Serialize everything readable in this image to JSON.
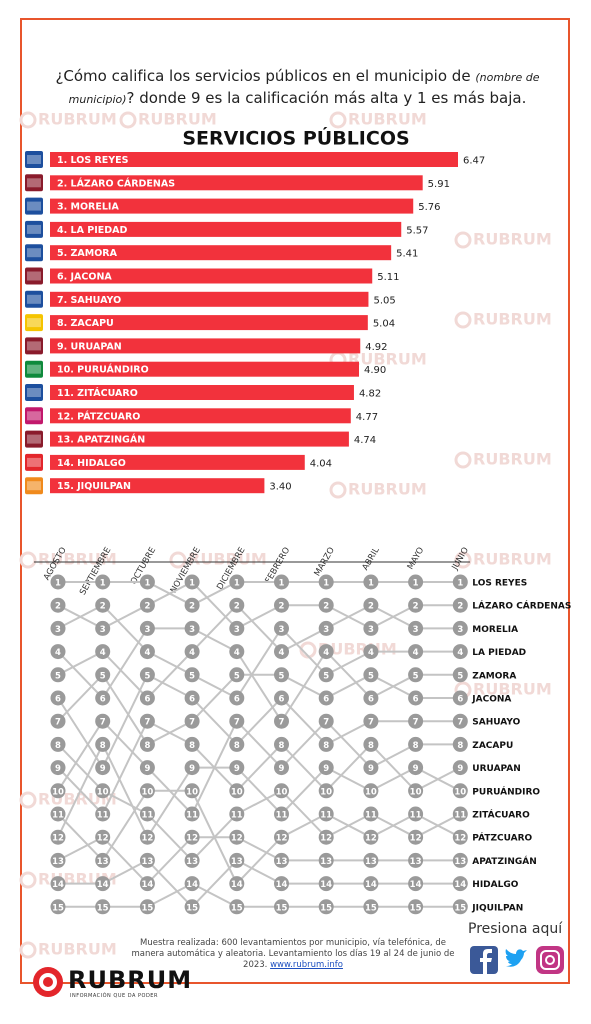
{
  "header": {
    "question_parts": [
      "¿Cómo califica los servicios públicos en el municipio de",
      "(nombre de municipio)",
      "? donde 9 es la calificación más alta y 1 es más baja."
    ]
  },
  "watermark": "RUBRUM",
  "chart_data": [
    {
      "type": "bar",
      "title": "SERVICIOS PÚBLICOS",
      "color": "#f2323c",
      "categories": [
        "1. LOS REYES",
        "2. LÁZARO CÁRDENAS",
        "3. MORELIA",
        "4. LA PIEDAD",
        "5. ZAMORA",
        "6. JACONA",
        "7. SAHUAYO",
        "8. ZACAPU",
        "9. URUAPAN",
        "10. PURUÁNDIRO",
        "11. ZITÁCUARO",
        "12. PÁTZCUARO",
        "13. APATZINGÁN",
        "14. HIDALGO",
        "15. JIQUILPAN"
      ],
      "values": [
        6.47,
        5.91,
        5.76,
        5.57,
        5.41,
        5.11,
        5.05,
        5.04,
        4.92,
        4.9,
        4.82,
        4.77,
        4.74,
        4.04,
        3.4
      ],
      "value_labels": [
        "6.47",
        "5.91",
        "5.76",
        "5.57",
        "5.41",
        "5.11",
        "5.05",
        "5.04",
        "4.92",
        "4.90",
        "4.82",
        "4.77",
        "4.74",
        "4.04",
        "3.40"
      ],
      "icon_colors": [
        "#1d4f9e",
        "#8a1b2b",
        "#1d4f9e",
        "#1d4f9e",
        "#1d4f9e",
        "#8a1b2b",
        "#1d4f9e",
        "#f5c400",
        "#8a1b2b",
        "#0f8a3c",
        "#1d4f9e",
        "#c2186b",
        "#8a1b2b",
        "#e3262b",
        "#f08a1c"
      ]
    },
    {
      "type": "bump",
      "color": "#c4c4c4",
      "node_color": "#9a9a9a",
      "x": [
        "AGOSTO",
        "SEPTIEMBRE",
        "OCTUBRE",
        "NOVIEMBRE",
        "DICIEMBRE",
        "FEBRERO",
        "MARZO",
        "ABRIL",
        "MAYO",
        "JUNIO"
      ],
      "series": [
        {
          "name": "LOS REYES",
          "values": [
            1,
            1,
            1,
            2,
            1,
            1,
            1,
            1,
            1,
            1
          ]
        },
        {
          "name": "LÁZARO CÁRDENAS",
          "values": [
            2,
            3,
            2,
            1,
            3,
            2,
            2,
            3,
            2,
            2
          ]
        },
        {
          "name": "MORELIA",
          "values": [
            5,
            4,
            6,
            4,
            2,
            4,
            3,
            2,
            3,
            3
          ]
        },
        {
          "name": "LA PIEDAD",
          "values": [
            3,
            2,
            4,
            5,
            6,
            3,
            5,
            4,
            4,
            4
          ]
        },
        {
          "name": "ZAMORA",
          "values": [
            4,
            6,
            3,
            3,
            4,
            7,
            4,
            6,
            5,
            5
          ]
        },
        {
          "name": "JACONA",
          "values": [
            7,
            5,
            8,
            7,
            5,
            5,
            6,
            5,
            6,
            6
          ]
        },
        {
          "name": "SAHUAYO",
          "values": [
            6,
            9,
            5,
            6,
            8,
            6,
            8,
            7,
            7,
            7
          ]
        },
        {
          "name": "ZACAPU",
          "values": [
            10,
            7,
            9,
            11,
            7,
            9,
            7,
            9,
            8,
            8
          ]
        },
        {
          "name": "URUAPAN",
          "values": [
            9,
            11,
            7,
            8,
            10,
            8,
            10,
            8,
            10,
            9
          ]
        },
        {
          "name": "PURUÁNDIRO",
          "values": [
            12,
            8,
            12,
            9,
            9,
            11,
            9,
            10,
            9,
            10
          ]
        },
        {
          "name": "ZITÁCUARO",
          "values": [
            8,
            10,
            11,
            13,
            11,
            10,
            12,
            11,
            12,
            11
          ]
        },
        {
          "name": "PÁTZCUARO",
          "values": [
            11,
            13,
            10,
            10,
            14,
            12,
            11,
            12,
            11,
            12
          ]
        },
        {
          "name": "APATZINGÁN",
          "values": [
            13,
            12,
            14,
            12,
            12,
            13,
            13,
            13,
            13,
            13
          ]
        },
        {
          "name": "HIDALGO",
          "values": [
            14,
            14,
            13,
            15,
            13,
            14,
            14,
            14,
            14,
            14
          ]
        },
        {
          "name": "JIQUILPAN",
          "values": [
            15,
            15,
            15,
            14,
            15,
            15,
            15,
            15,
            15,
            15
          ]
        }
      ]
    }
  ],
  "footer": {
    "note": "Muestra realizada: 600 levantamientos por municipio, vía telefónica, de manera automática y aleatoria. Levantamiento los días 19 al 24 de junio de 2023.",
    "link": "www.rubrum.info",
    "cta": "Presiona aquí",
    "brand": "RUBRUM",
    "tagline": "INFORMACIÓN QUE DA PODER"
  }
}
